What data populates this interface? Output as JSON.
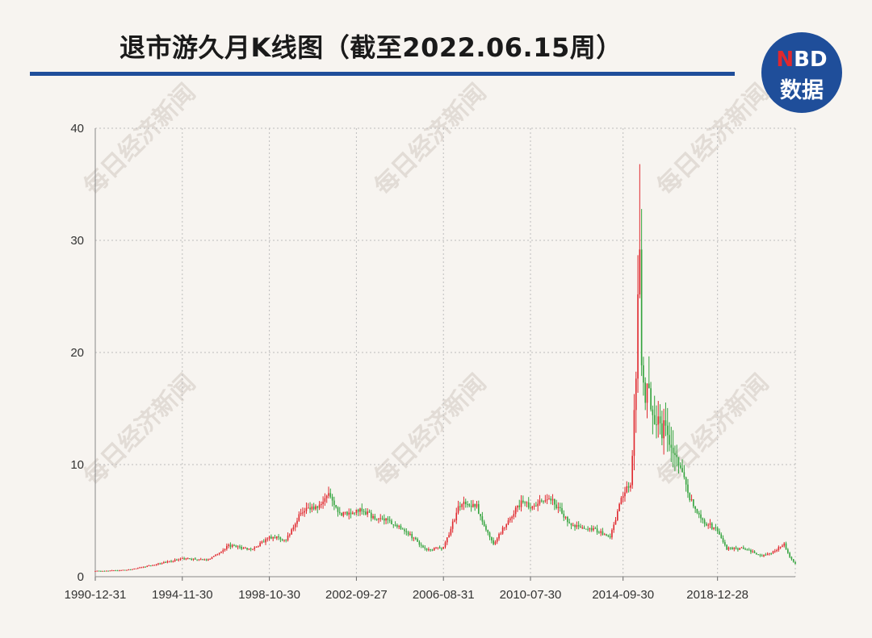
{
  "title": "退市游久月K线图（截至2022.06.15周）",
  "logo": {
    "line1_n": "N",
    "line1_rest": "BD",
    "line2": "数据"
  },
  "watermark": "每日经济新闻",
  "colors": {
    "up": "#e0282e",
    "down": "#33a33d",
    "accent": "#1f4e9a",
    "grid": "#bdbdbd"
  },
  "chart_data": {
    "type": "candlestick",
    "title": "退市游久月K线图（截至2022.06.15周）",
    "x_tick_labels": [
      "1990-12-31",
      "1994-11-30",
      "1998-10-30",
      "2002-09-27",
      "2006-08-31",
      "2010-07-30",
      "2014-09-30",
      "2018-12-28"
    ],
    "y_ticks": [
      0,
      10,
      20,
      30,
      40
    ],
    "ylim": [
      0,
      40
    ],
    "xlim": [
      "1990-12",
      "2022-06"
    ],
    "grid": "dashed",
    "up_color": "red",
    "down_color": "green",
    "close_anchors": [
      [
        "1990-12",
        0.5
      ],
      [
        "1992-05",
        0.6
      ],
      [
        "1993-06",
        1.0
      ],
      [
        "1994-11",
        1.6
      ],
      [
        "1996-01",
        1.5
      ],
      [
        "1996-12",
        2.8
      ],
      [
        "1998-01",
        2.4
      ],
      [
        "1998-10",
        3.6
      ],
      [
        "1999-07",
        3.3
      ],
      [
        "2000-03",
        5.8
      ],
      [
        "2000-12",
        6.4
      ],
      [
        "2001-06",
        7.3
      ],
      [
        "2002-01",
        5.5
      ],
      [
        "2002-09",
        6.0
      ],
      [
        "2003-06",
        5.4
      ],
      [
        "2004-03",
        4.9
      ],
      [
        "2005-01",
        3.8
      ],
      [
        "2005-11",
        2.4
      ],
      [
        "2006-08",
        2.6
      ],
      [
        "2007-05",
        6.5
      ],
      [
        "2008-02",
        6.2
      ],
      [
        "2008-11",
        2.9
      ],
      [
        "2009-06",
        4.8
      ],
      [
        "2010-02",
        6.6
      ],
      [
        "2010-07",
        6.2
      ],
      [
        "2011-06",
        7.0
      ],
      [
        "2012-05",
        4.5
      ],
      [
        "2013-04",
        4.3
      ],
      [
        "2014-02",
        3.6
      ],
      [
        "2014-09",
        7.5
      ],
      [
        "2015-01",
        8.2
      ],
      [
        "2015-04",
        18.5
      ],
      [
        "2015-05",
        26.0
      ],
      [
        "2015-06",
        30.5
      ],
      [
        "2015-07",
        20.0
      ],
      [
        "2015-09",
        16.5
      ],
      [
        "2016-02",
        14.5
      ],
      [
        "2016-09",
        12.5
      ],
      [
        "2017-03",
        10.5
      ],
      [
        "2017-09",
        7.0
      ],
      [
        "2018-03",
        5.0
      ],
      [
        "2018-12",
        4.2
      ],
      [
        "2019-05",
        2.5
      ],
      [
        "2020-01",
        2.5
      ],
      [
        "2020-12",
        1.9
      ],
      [
        "2021-06",
        2.2
      ],
      [
        "2021-12",
        2.9
      ],
      [
        "2022-03",
        1.8
      ],
      [
        "2022-06",
        1.1
      ]
    ],
    "notable_highs": [
      [
        "2015-06",
        36.8
      ],
      [
        "2015-07",
        32.8
      ]
    ]
  }
}
